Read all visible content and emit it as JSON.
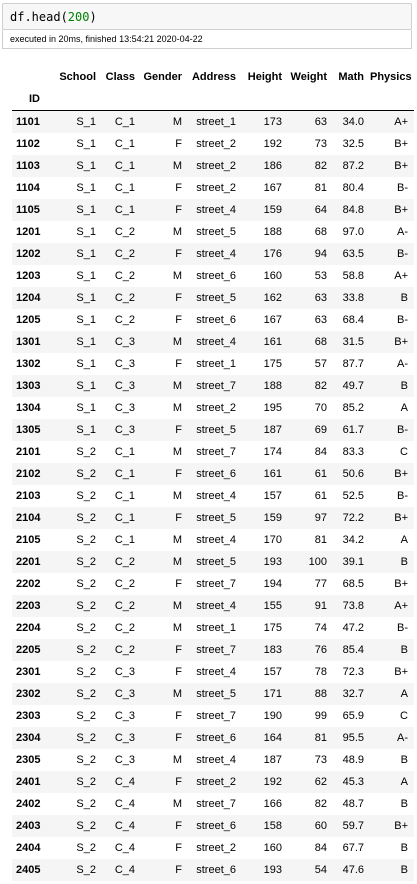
{
  "cell": {
    "code_prefix": "df.head(",
    "code_arg": "200",
    "code_suffix": ")",
    "exec_info": "executed in 20ms, finished 13:54:21 2020-04-22"
  },
  "table": {
    "index_name": "ID",
    "columns": [
      "School",
      "Class",
      "Gender",
      "Address",
      "Height",
      "Weight",
      "Math",
      "Physics"
    ],
    "rows": [
      [
        "1101",
        "S_1",
        "C_1",
        "M",
        "street_1",
        "173",
        "63",
        "34.0",
        "A+"
      ],
      [
        "1102",
        "S_1",
        "C_1",
        "F",
        "street_2",
        "192",
        "73",
        "32.5",
        "B+"
      ],
      [
        "1103",
        "S_1",
        "C_1",
        "M",
        "street_2",
        "186",
        "82",
        "87.2",
        "B+"
      ],
      [
        "1104",
        "S_1",
        "C_1",
        "F",
        "street_2",
        "167",
        "81",
        "80.4",
        "B-"
      ],
      [
        "1105",
        "S_1",
        "C_1",
        "F",
        "street_4",
        "159",
        "64",
        "84.8",
        "B+"
      ],
      [
        "1201",
        "S_1",
        "C_2",
        "M",
        "street_5",
        "188",
        "68",
        "97.0",
        "A-"
      ],
      [
        "1202",
        "S_1",
        "C_2",
        "F",
        "street_4",
        "176",
        "94",
        "63.5",
        "B-"
      ],
      [
        "1203",
        "S_1",
        "C_2",
        "M",
        "street_6",
        "160",
        "53",
        "58.8",
        "A+"
      ],
      [
        "1204",
        "S_1",
        "C_2",
        "F",
        "street_5",
        "162",
        "63",
        "33.8",
        "B"
      ],
      [
        "1205",
        "S_1",
        "C_2",
        "F",
        "street_6",
        "167",
        "63",
        "68.4",
        "B-"
      ],
      [
        "1301",
        "S_1",
        "C_3",
        "M",
        "street_4",
        "161",
        "68",
        "31.5",
        "B+"
      ],
      [
        "1302",
        "S_1",
        "C_3",
        "F",
        "street_1",
        "175",
        "57",
        "87.7",
        "A-"
      ],
      [
        "1303",
        "S_1",
        "C_3",
        "M",
        "street_7",
        "188",
        "82",
        "49.7",
        "B"
      ],
      [
        "1304",
        "S_1",
        "C_3",
        "M",
        "street_2",
        "195",
        "70",
        "85.2",
        "A"
      ],
      [
        "1305",
        "S_1",
        "C_3",
        "F",
        "street_5",
        "187",
        "69",
        "61.7",
        "B-"
      ],
      [
        "2101",
        "S_2",
        "C_1",
        "M",
        "street_7",
        "174",
        "84",
        "83.3",
        "C"
      ],
      [
        "2102",
        "S_2",
        "C_1",
        "F",
        "street_6",
        "161",
        "61",
        "50.6",
        "B+"
      ],
      [
        "2103",
        "S_2",
        "C_1",
        "M",
        "street_4",
        "157",
        "61",
        "52.5",
        "B-"
      ],
      [
        "2104",
        "S_2",
        "C_1",
        "F",
        "street_5",
        "159",
        "97",
        "72.2",
        "B+"
      ],
      [
        "2105",
        "S_2",
        "C_1",
        "M",
        "street_4",
        "170",
        "81",
        "34.2",
        "A"
      ],
      [
        "2201",
        "S_2",
        "C_2",
        "M",
        "street_5",
        "193",
        "100",
        "39.1",
        "B"
      ],
      [
        "2202",
        "S_2",
        "C_2",
        "F",
        "street_7",
        "194",
        "77",
        "68.5",
        "B+"
      ],
      [
        "2203",
        "S_2",
        "C_2",
        "M",
        "street_4",
        "155",
        "91",
        "73.8",
        "A+"
      ],
      [
        "2204",
        "S_2",
        "C_2",
        "M",
        "street_1",
        "175",
        "74",
        "47.2",
        "B-"
      ],
      [
        "2205",
        "S_2",
        "C_2",
        "F",
        "street_7",
        "183",
        "76",
        "85.4",
        "B"
      ],
      [
        "2301",
        "S_2",
        "C_3",
        "F",
        "street_4",
        "157",
        "78",
        "72.3",
        "B+"
      ],
      [
        "2302",
        "S_2",
        "C_3",
        "M",
        "street_5",
        "171",
        "88",
        "32.7",
        "A"
      ],
      [
        "2303",
        "S_2",
        "C_3",
        "F",
        "street_7",
        "190",
        "99",
        "65.9",
        "C"
      ],
      [
        "2304",
        "S_2",
        "C_3",
        "F",
        "street_6",
        "164",
        "81",
        "95.5",
        "A-"
      ],
      [
        "2305",
        "S_2",
        "C_3",
        "M",
        "street_4",
        "187",
        "73",
        "48.9",
        "B"
      ],
      [
        "2401",
        "S_2",
        "C_4",
        "F",
        "street_2",
        "192",
        "62",
        "45.3",
        "A"
      ],
      [
        "2402",
        "S_2",
        "C_4",
        "M",
        "street_7",
        "166",
        "82",
        "48.7",
        "B"
      ],
      [
        "2403",
        "S_2",
        "C_4",
        "F",
        "street_6",
        "158",
        "60",
        "59.7",
        "B+"
      ],
      [
        "2404",
        "S_2",
        "C_4",
        "F",
        "street_2",
        "160",
        "84",
        "67.7",
        "B"
      ],
      [
        "2405",
        "S_2",
        "C_4",
        "F",
        "street_6",
        "193",
        "54",
        "47.6",
        "B"
      ]
    ]
  }
}
